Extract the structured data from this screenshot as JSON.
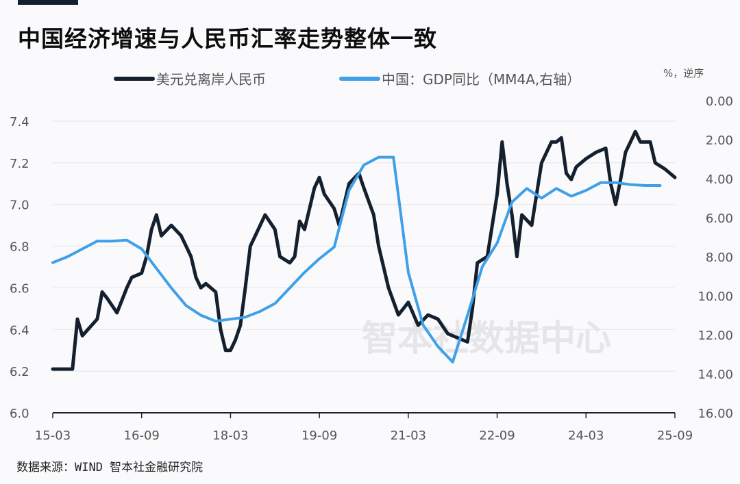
{
  "title": "中国经济增速与人民币汇率走势整体一致",
  "unit_note": "%，逆序",
  "source": "数据来源：WIND 智本社金融研究院",
  "watermark": "智本社数据中心",
  "chart_data": {
    "type": "line",
    "title": "中国经济增速与人民币汇率走势整体一致",
    "legend_position": "top",
    "grid": "horizontal",
    "x_ticks": [
      "15-03",
      "16-09",
      "18-03",
      "19-09",
      "21-03",
      "22-09",
      "24-03",
      "25-09"
    ],
    "x_range": [
      "2015-03",
      "2025-09"
    ],
    "y_left": {
      "ticks": [
        "6.0",
        "6.2",
        "6.4",
        "6.6",
        "6.8",
        "7.0",
        "7.2",
        "7.4"
      ],
      "range": [
        6.0,
        7.4
      ]
    },
    "y_right": {
      "ticks": [
        "0.00",
        "2.00",
        "4.00",
        "6.00",
        "8.00",
        "10.00",
        "12.00",
        "14.00",
        "16.00"
      ],
      "range": [
        0,
        16
      ],
      "reversed": true
    },
    "series": [
      {
        "name": "美元兑离岸人民币",
        "axis": "left",
        "color": "#14202e",
        "points": [
          [
            "2015-03",
            6.21
          ],
          [
            "2015-07",
            6.21
          ],
          [
            "2015-08",
            6.45
          ],
          [
            "2015-09",
            6.37
          ],
          [
            "2015-12",
            6.45
          ],
          [
            "2016-01",
            6.58
          ],
          [
            "2016-02",
            6.55
          ],
          [
            "2016-04",
            6.48
          ],
          [
            "2016-06",
            6.6
          ],
          [
            "2016-07",
            6.65
          ],
          [
            "2016-09",
            6.67
          ],
          [
            "2016-10",
            6.75
          ],
          [
            "2016-11",
            6.88
          ],
          [
            "2016-12",
            6.95
          ],
          [
            "2017-01",
            6.85
          ],
          [
            "2017-03",
            6.9
          ],
          [
            "2017-05",
            6.85
          ],
          [
            "2017-06",
            6.8
          ],
          [
            "2017-07",
            6.75
          ],
          [
            "2017-08",
            6.65
          ],
          [
            "2017-09",
            6.6
          ],
          [
            "2017-10",
            6.62
          ],
          [
            "2017-12",
            6.58
          ],
          [
            "2018-01",
            6.4
          ],
          [
            "2018-02",
            6.3
          ],
          [
            "2018-03",
            6.3
          ],
          [
            "2018-04",
            6.35
          ],
          [
            "2018-05",
            6.42
          ],
          [
            "2018-06",
            6.6
          ],
          [
            "2018-07",
            6.8
          ],
          [
            "2018-08",
            6.85
          ],
          [
            "2018-10",
            6.95
          ],
          [
            "2018-12",
            6.88
          ],
          [
            "2019-01",
            6.75
          ],
          [
            "2019-03",
            6.72
          ],
          [
            "2019-04",
            6.75
          ],
          [
            "2019-05",
            6.92
          ],
          [
            "2019-06",
            6.88
          ],
          [
            "2019-08",
            7.08
          ],
          [
            "2019-09",
            7.13
          ],
          [
            "2019-10",
            7.05
          ],
          [
            "2019-12",
            6.98
          ],
          [
            "2020-01",
            6.9
          ],
          [
            "2020-02",
            7.0
          ],
          [
            "2020-03",
            7.1
          ],
          [
            "2020-05",
            7.15
          ],
          [
            "2020-06",
            7.08
          ],
          [
            "2020-08",
            6.95
          ],
          [
            "2020-09",
            6.8
          ],
          [
            "2020-11",
            6.6
          ],
          [
            "2021-01",
            6.47
          ],
          [
            "2021-03",
            6.53
          ],
          [
            "2021-05",
            6.42
          ],
          [
            "2021-07",
            6.47
          ],
          [
            "2021-09",
            6.45
          ],
          [
            "2021-11",
            6.38
          ],
          [
            "2022-01",
            6.36
          ],
          [
            "2022-03",
            6.34
          ],
          [
            "2022-04",
            6.5
          ],
          [
            "2022-05",
            6.72
          ],
          [
            "2022-07",
            6.75
          ],
          [
            "2022-09",
            7.05
          ],
          [
            "2022-10",
            7.3
          ],
          [
            "2022-11",
            7.1
          ],
          [
            "2022-12",
            6.95
          ],
          [
            "2023-01",
            6.75
          ],
          [
            "2023-02",
            6.95
          ],
          [
            "2023-04",
            6.9
          ],
          [
            "2023-05",
            7.05
          ],
          [
            "2023-06",
            7.2
          ],
          [
            "2023-08",
            7.3
          ],
          [
            "2023-09",
            7.3
          ],
          [
            "2023-10",
            7.32
          ],
          [
            "2023-11",
            7.15
          ],
          [
            "2023-12",
            7.12
          ],
          [
            "2024-01",
            7.18
          ],
          [
            "2024-03",
            7.22
          ],
          [
            "2024-05",
            7.25
          ],
          [
            "2024-07",
            7.27
          ],
          [
            "2024-08",
            7.1
          ],
          [
            "2024-09",
            7.0
          ],
          [
            "2024-10",
            7.12
          ],
          [
            "2024-11",
            7.25
          ],
          [
            "2024-12",
            7.3
          ],
          [
            "2025-01",
            7.35
          ],
          [
            "2025-02",
            7.3
          ],
          [
            "2025-04",
            7.3
          ],
          [
            "2025-05",
            7.2
          ],
          [
            "2025-07",
            7.17
          ],
          [
            "2025-08",
            7.15
          ],
          [
            "2025-09",
            7.13
          ]
        ]
      },
      {
        "name": "中国：GDP同比（MM4A,右轴）",
        "axis": "right",
        "color": "#3fa0e8",
        "points": [
          [
            "2015-03",
            8.3
          ],
          [
            "2015-06",
            8.0
          ],
          [
            "2015-09",
            7.6
          ],
          [
            "2015-12",
            7.2
          ],
          [
            "2016-03",
            7.2
          ],
          [
            "2016-06",
            7.15
          ],
          [
            "2016-09",
            7.6
          ],
          [
            "2016-12",
            8.6
          ],
          [
            "2017-03",
            9.6
          ],
          [
            "2017-06",
            10.5
          ],
          [
            "2017-09",
            11.0
          ],
          [
            "2017-12",
            11.3
          ],
          [
            "2018-03",
            11.2
          ],
          [
            "2018-06",
            11.1
          ],
          [
            "2018-09",
            10.8
          ],
          [
            "2018-12",
            10.4
          ],
          [
            "2019-03",
            9.6
          ],
          [
            "2019-06",
            8.8
          ],
          [
            "2019-09",
            8.1
          ],
          [
            "2019-12",
            7.5
          ],
          [
            "2020-03",
            4.6
          ],
          [
            "2020-06",
            3.3
          ],
          [
            "2020-09",
            2.9
          ],
          [
            "2020-12",
            2.9
          ],
          [
            "2021-03",
            8.8
          ],
          [
            "2021-06",
            11.5
          ],
          [
            "2021-09",
            12.6
          ],
          [
            "2021-12",
            13.4
          ],
          [
            "2022-03",
            11.0
          ],
          [
            "2022-06",
            8.5
          ],
          [
            "2022-09",
            7.3
          ],
          [
            "2022-12",
            5.2
          ],
          [
            "2023-03",
            4.5
          ],
          [
            "2023-06",
            5.0
          ],
          [
            "2023-09",
            4.5
          ],
          [
            "2023-12",
            4.9
          ],
          [
            "2024-03",
            4.6
          ],
          [
            "2024-06",
            4.2
          ],
          [
            "2024-09",
            4.2
          ],
          [
            "2024-12",
            4.3
          ],
          [
            "2025-03",
            4.35
          ],
          [
            "2025-06",
            4.35
          ]
        ]
      }
    ]
  }
}
